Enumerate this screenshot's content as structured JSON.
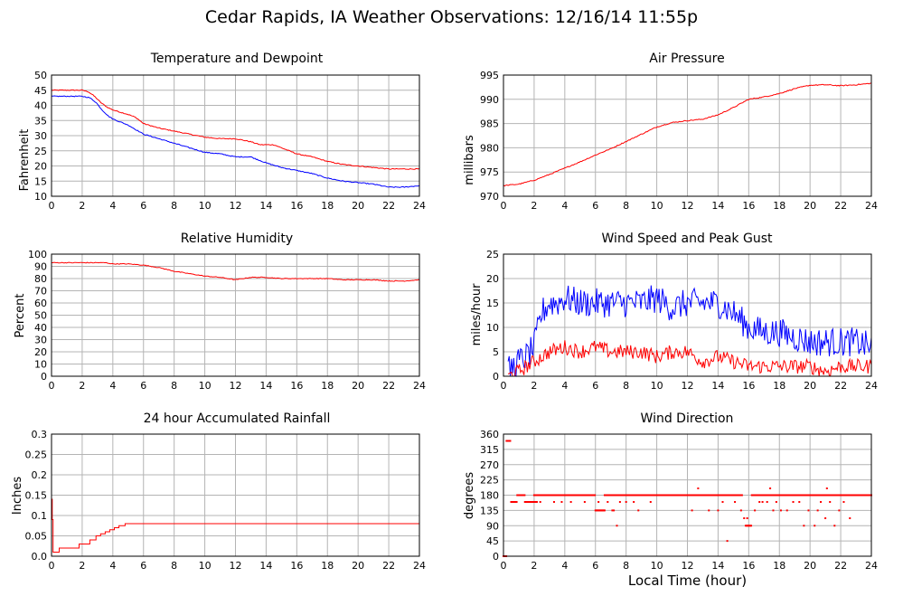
{
  "page": {
    "title": "Cedar Rapids, IA Weather Observations: 12/16/14 11:55p",
    "xaxis_label": "Local Time (hour)"
  },
  "colors": {
    "red": "#ff0000",
    "blue": "#0000ff",
    "grid": "#b4b4b4",
    "axis": "#000000"
  },
  "chart_data": [
    {
      "id": "temp",
      "type": "line",
      "title": "Temperature and Dewpoint",
      "xlabel": "",
      "ylabel": "Fahrenheit",
      "xlim": [
        0,
        24
      ],
      "ylim": [
        10,
        50
      ],
      "xticks": [
        0,
        2,
        4,
        6,
        8,
        10,
        12,
        14,
        16,
        18,
        20,
        22,
        24
      ],
      "yticks": [
        10,
        15,
        20,
        25,
        30,
        35,
        40,
        45,
        50
      ],
      "grid": true,
      "noise": 0.15,
      "series": [
        {
          "color": "#ff0000",
          "x": [
            0,
            2,
            2.4,
            2.8,
            3.2,
            3.6,
            4,
            5,
            5.5,
            6,
            7,
            8,
            9,
            10,
            11,
            12,
            13,
            13.6,
            14.5,
            15,
            16,
            17,
            18,
            19,
            20,
            21,
            22,
            23,
            24
          ],
          "y": [
            45,
            45,
            44.5,
            43,
            41,
            39.5,
            38.5,
            37,
            36,
            34,
            32.5,
            31.5,
            30.5,
            29.5,
            29,
            29,
            28,
            27,
            27,
            26,
            24,
            23,
            21.5,
            20.5,
            20,
            19.5,
            19,
            19,
            19
          ]
        },
        {
          "color": "#0000ff",
          "x": [
            0,
            2,
            2.5,
            2.9,
            3.3,
            3.7,
            4,
            5,
            5.5,
            6,
            7,
            8,
            9,
            10,
            11,
            12,
            13,
            14,
            15,
            16,
            17,
            18,
            19,
            20,
            21,
            22,
            23,
            24
          ],
          "y": [
            43,
            43,
            42.5,
            41,
            38.5,
            36.5,
            35.5,
            33.5,
            32,
            30.5,
            29,
            27.5,
            26,
            24.5,
            24,
            23,
            23,
            21,
            19.5,
            18.5,
            17.5,
            16,
            15,
            14.5,
            14,
            13,
            13,
            13.5
          ]
        }
      ]
    },
    {
      "id": "pres",
      "type": "line",
      "title": "Air Pressure",
      "xlabel": "",
      "ylabel": "millibars",
      "xlim": [
        0,
        24
      ],
      "ylim": [
        970,
        995
      ],
      "xticks": [
        0,
        2,
        4,
        6,
        8,
        10,
        12,
        14,
        16,
        18,
        20,
        22,
        24
      ],
      "yticks": [
        970,
        975,
        980,
        985,
        990,
        995
      ],
      "grid": true,
      "noise": 0.1,
      "series": [
        {
          "color": "#ff0000",
          "x": [
            0,
            1,
            2,
            3,
            4,
            5,
            6,
            7,
            8,
            9,
            10,
            11,
            12,
            13,
            14,
            15,
            16,
            17,
            18,
            19,
            20,
            21,
            22,
            23,
            24
          ],
          "y": [
            972.2,
            972.5,
            973.3,
            974.5,
            975.8,
            977.1,
            978.5,
            979.8,
            981.3,
            982.8,
            984.3,
            985.2,
            985.6,
            985.9,
            986.8,
            988.3,
            990,
            990.5,
            991.2,
            992.2,
            992.9,
            993,
            992.8,
            993,
            993.3
          ]
        }
      ]
    },
    {
      "id": "rh",
      "type": "line",
      "title": "Relative Humidity",
      "xlabel": "",
      "ylabel": "Percent",
      "xlim": [
        0,
        24
      ],
      "ylim": [
        0,
        100
      ],
      "xticks": [
        0,
        2,
        4,
        6,
        8,
        10,
        12,
        14,
        16,
        18,
        20,
        22,
        24
      ],
      "yticks": [
        0,
        10,
        20,
        30,
        40,
        50,
        60,
        70,
        80,
        90,
        100
      ],
      "grid": true,
      "noise": 0.3,
      "series": [
        {
          "color": "#ff0000",
          "x": [
            0,
            2,
            3.5,
            4,
            5,
            6,
            7,
            8,
            9,
            10,
            11,
            12,
            13,
            14,
            15,
            16,
            17,
            18,
            19,
            20,
            21,
            22,
            23,
            24
          ],
          "y": [
            93,
            93,
            93,
            92,
            92,
            91,
            89,
            86,
            84,
            82,
            81,
            79,
            81,
            81,
            80,
            80,
            80,
            80,
            79,
            79,
            79,
            78,
            78,
            79
          ]
        }
      ]
    },
    {
      "id": "wind",
      "type": "line",
      "title": "Wind Speed and Peak Gust",
      "xlabel": "",
      "ylabel": "miles/hour",
      "xlim": [
        0,
        24
      ],
      "ylim": [
        0,
        25
      ],
      "xticks": [
        0,
        2,
        4,
        6,
        8,
        10,
        12,
        14,
        16,
        18,
        20,
        22,
        24
      ],
      "yticks": [
        0,
        5,
        10,
        15,
        20,
        25
      ],
      "grid": true,
      "noise": 3,
      "series": [
        {
          "color": "#0000ff",
          "x": [
            0.3,
            1,
            1.5,
            2,
            2.5,
            3,
            3.5,
            4,
            5,
            6,
            7,
            8,
            9,
            10,
            11,
            12,
            13,
            14,
            15,
            16,
            17,
            18,
            19,
            20,
            21,
            22,
            23,
            24
          ],
          "y": [
            1,
            3,
            4,
            6,
            13,
            15,
            15,
            16,
            15,
            15,
            15,
            15,
            15,
            16,
            14,
            15,
            15,
            15,
            13,
            10,
            9,
            9,
            8,
            7,
            7,
            7,
            7,
            6
          ]
        },
        {
          "color": "#ff0000",
          "x": [
            0.3,
            1,
            2,
            3,
            4,
            5,
            6,
            7,
            8,
            9,
            10,
            11,
            12,
            13,
            14,
            15,
            16,
            17,
            18,
            19,
            20,
            21,
            22,
            23,
            24
          ],
          "y": [
            0,
            1,
            3,
            5,
            6,
            5,
            6,
            5,
            5,
            5,
            4,
            5,
            5,
            3,
            4,
            3,
            2,
            2,
            2,
            2,
            2,
            1,
            2,
            2,
            2
          ]
        }
      ]
    },
    {
      "id": "rain",
      "type": "line",
      "title": "24 hour Accumulated Rainfall",
      "xlabel": "",
      "ylabel": "Inches",
      "xlim": [
        0,
        24
      ],
      "ylim": [
        0,
        0.3
      ],
      "xticks": [
        0,
        2,
        4,
        6,
        8,
        10,
        12,
        14,
        16,
        18,
        20,
        22,
        24
      ],
      "yticks": [
        "0.0",
        "0.05",
        "0.1",
        "0.15",
        "0.2",
        "0.25",
        "0.3"
      ],
      "grid": true,
      "noise": 0,
      "series": [
        {
          "color": "#ff0000",
          "step": true,
          "x": [
            0,
            0.05,
            0.1,
            0.25,
            0.5,
            1.5,
            1.8,
            2.1,
            2.5,
            2.9,
            3.2,
            3.5,
            3.8,
            4.1,
            4.4,
            4.8,
            24
          ],
          "y": [
            0.14,
            0.09,
            0.01,
            0.01,
            0.02,
            0.02,
            0.03,
            0.03,
            0.04,
            0.05,
            0.055,
            0.06,
            0.065,
            0.07,
            0.075,
            0.08,
            0.08
          ]
        }
      ]
    },
    {
      "id": "dir",
      "type": "scatter",
      "title": "Wind Direction",
      "xlabel": "Local Time (hour)",
      "ylabel": "degrees",
      "xlim": [
        0,
        24
      ],
      "ylim": [
        0,
        360
      ],
      "xticks": [
        0,
        2,
        4,
        6,
        8,
        10,
        12,
        14,
        16,
        18,
        20,
        22,
        24
      ],
      "yticks": [
        0,
        45,
        90,
        135,
        180,
        225,
        270,
        315,
        360
      ],
      "grid": true,
      "runs": [
        {
          "x0": 0.0,
          "x1": 0.2,
          "y": 0
        },
        {
          "x0": 0.2,
          "x1": 0.45,
          "y": 340
        },
        {
          "x0": 0.5,
          "x1": 0.9,
          "y": 160
        },
        {
          "x0": 0.9,
          "x1": 1.4,
          "y": 180
        },
        {
          "x0": 1.4,
          "x1": 2.2,
          "y": 160
        },
        {
          "x0": 2.0,
          "x1": 6.0,
          "y": 180
        },
        {
          "x0": 6.0,
          "x1": 6.6,
          "y": 135
        },
        {
          "x0": 6.6,
          "x1": 12.0,
          "y": 180
        },
        {
          "x0": 12.0,
          "x1": 14.2,
          "y": 180
        },
        {
          "x0": 14.0,
          "x1": 15.6,
          "y": 180
        },
        {
          "x0": 15.8,
          "x1": 16.2,
          "y": 90
        },
        {
          "x0": 16.2,
          "x1": 24.0,
          "y": 180
        }
      ],
      "points": {
        "x": [
          2.1,
          2.4,
          3.3,
          3.8,
          4.4,
          5.3,
          6.2,
          6.8,
          7.1,
          7.2,
          7.4,
          7.6,
          8.0,
          8.5,
          8.8,
          9.6,
          12.3,
          12.7,
          13.4,
          14.0,
          14.3,
          14.6,
          15.1,
          15.5,
          15.7,
          15.9,
          16.4,
          16.7,
          16.9,
          17.2,
          17.4,
          17.6,
          17.8,
          18.1,
          18.5,
          18.9,
          19.3,
          19.6,
          19.9,
          20.3,
          20.5,
          20.7,
          21.0,
          21.1,
          21.3,
          21.6,
          21.9,
          22.2,
          22.6
        ],
        "y": [
          160,
          160,
          160,
          160,
          160,
          160,
          160,
          160,
          135,
          135,
          90,
          160,
          160,
          160,
          135,
          160,
          135,
          200,
          135,
          135,
          160,
          45,
          160,
          135,
          112,
          112,
          135,
          160,
          160,
          160,
          200,
          135,
          160,
          135,
          135,
          160,
          160,
          90,
          135,
          90,
          135,
          160,
          112,
          200,
          160,
          90,
          135,
          160,
          112
        ]
      }
    }
  ]
}
